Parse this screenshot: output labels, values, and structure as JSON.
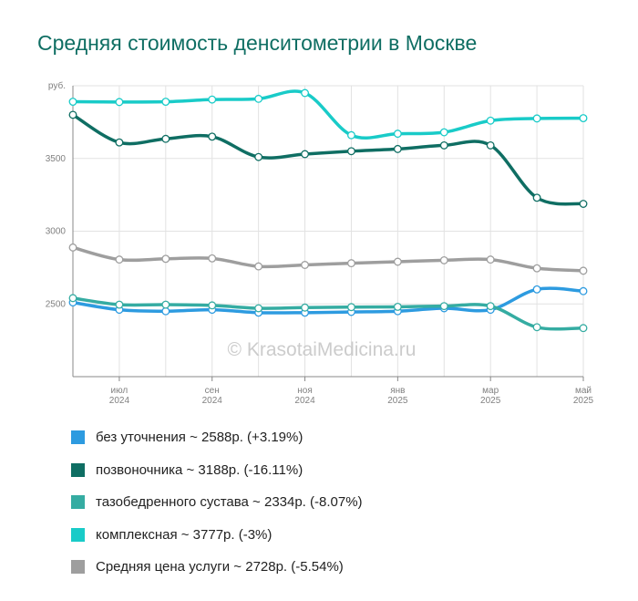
{
  "title": "Средняя стоимость денситометрии в Москве",
  "watermark": "© KrasotaiMedicina.ru",
  "chart_data": {
    "type": "line",
    "y_unit": "руб.",
    "yticks": [
      2500,
      3000,
      3500
    ],
    "ylim": [
      2000,
      4000
    ],
    "x_count": 12,
    "xticks": [
      {
        "index": 1,
        "month": "июл",
        "year": "2024"
      },
      {
        "index": 3,
        "month": "сен",
        "year": "2024"
      },
      {
        "index": 5,
        "month": "ноя",
        "year": "2024"
      },
      {
        "index": 7,
        "month": "янв",
        "year": "2025"
      },
      {
        "index": 9,
        "month": "мар",
        "year": "2025"
      },
      {
        "index": 11,
        "month": "май",
        "year": "2025"
      }
    ],
    "series": [
      {
        "name": "без уточнения ~ 2588р. (+3.19%)",
        "color": "#2d9be0",
        "values": [
          2510,
          2460,
          2450,
          2460,
          2440,
          2440,
          2445,
          2450,
          2470,
          2460,
          2600,
          2588
        ]
      },
      {
        "name": "позвоночника ~ 3188р. (-16.11%)",
        "color": "#0f6e63",
        "values": [
          3800,
          3610,
          3635,
          3650,
          3510,
          3530,
          3550,
          3565,
          3590,
          3590,
          3230,
          3188
        ]
      },
      {
        "name": "тазобедренного сустава ~ 2334р. (-8.07%)",
        "color": "#35aca2",
        "values": [
          2540,
          2495,
          2495,
          2490,
          2470,
          2475,
          2478,
          2480,
          2485,
          2485,
          2340,
          2334
        ]
      },
      {
        "name": "комплексная ~ 3777р. (-3%)",
        "color": "#19cbc8",
        "values": [
          3890,
          3888,
          3890,
          3905,
          3910,
          3950,
          3660,
          3670,
          3680,
          3760,
          3775,
          3777
        ]
      },
      {
        "name": "Средняя цена услуги ~ 2728р. (-5.54%)",
        "color": "#9e9e9e",
        "values": [
          2888,
          2805,
          2810,
          2813,
          2758,
          2768,
          2780,
          2790,
          2800,
          2805,
          2745,
          2728
        ]
      }
    ]
  }
}
